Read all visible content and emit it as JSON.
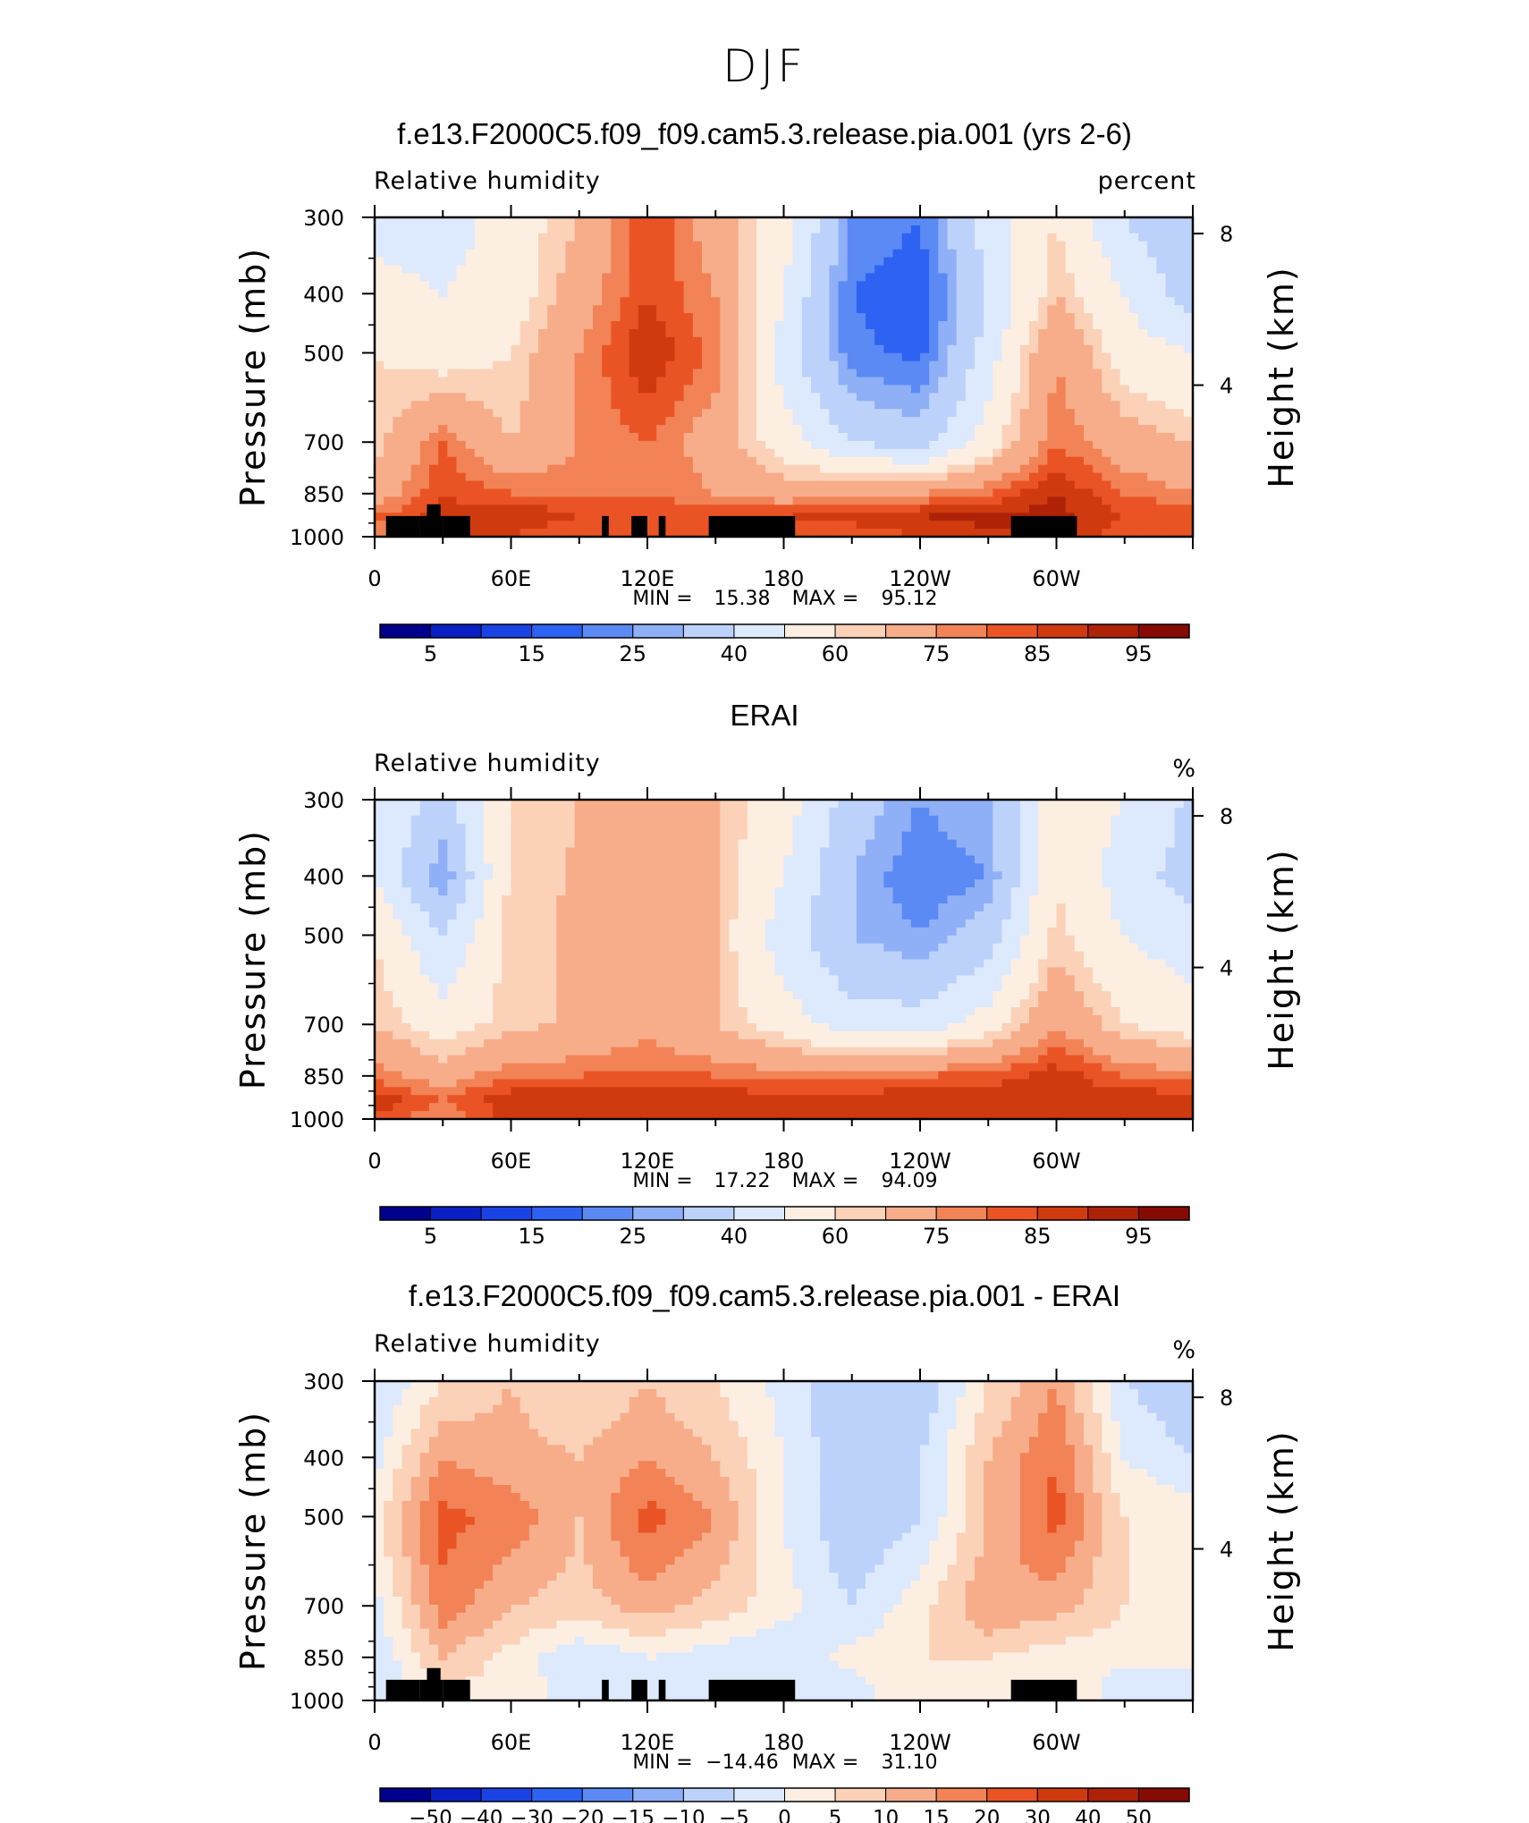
{
  "figure_title": "DJF",
  "colors": {
    "land_mask": "#000000",
    "scale": [
      "#00008c",
      "#0a20c4",
      "#1a43e6",
      "#2d62f2",
      "#5b8af5",
      "#8fb0f6",
      "#bdd2fa",
      "#dde9fc",
      "#fdeee2",
      "#fbd1b8",
      "#f7ad8a",
      "#f28356",
      "#ea5425",
      "#cf3a0f",
      "#ae2208",
      "#860b04"
    ]
  },
  "panels": [
    {
      "title": "f.e13.F2000C5.f09_f09.cam5.3.release.pia.001 (yrs 2-6)",
      "left_label": "Relative humidity",
      "right_label": "percent",
      "stats": {
        "min_label": "MIN =",
        "min": "15.38",
        "max_label": "MAX =",
        "max": "95.12"
      },
      "colorbar_labels": [
        "5",
        "15",
        "25",
        "40",
        "60",
        "75",
        "85",
        "95"
      ]
    },
    {
      "title": "ERAI",
      "left_label": "Relative humidity",
      "right_label": "%",
      "stats": {
        "min_label": "MIN =",
        "min": "17.22",
        "max_label": "MAX =",
        "max": "94.09"
      },
      "colorbar_labels": [
        "5",
        "15",
        "25",
        "40",
        "60",
        "75",
        "85",
        "95"
      ]
    },
    {
      "title": "f.e13.F2000C5.f09_f09.cam5.3.release.pia.001 - ERAI",
      "left_label": "Relative humidity",
      "right_label": "%",
      "stats": {
        "min_label": "MIN =",
        "min": "−14.46",
        "max_label": "MAX =",
        "max": "31.10"
      },
      "colorbar_labels": [
        "−50",
        "−40",
        "−30",
        "−20",
        "−15",
        "−10",
        "−5",
        "0",
        "5",
        "10",
        "15",
        "20",
        "30",
        "40",
        "50"
      ]
    }
  ],
  "chart_data": [
    {
      "type": "heatmap",
      "title": "f.e13.F2000C5.f09_f09.cam5.3.release.pia.001 (yrs 2-6)",
      "field": "Relative humidity",
      "units": "percent",
      "x_ticks": [
        "0",
        "60E",
        "120E",
        "180",
        "120W",
        "60W"
      ],
      "x_range": [
        0,
        360
      ],
      "y_ticks_pressure": [
        "300",
        "400",
        "500",
        "700",
        "850",
        "1000"
      ],
      "y_ticks_height": [
        "8",
        "4"
      ],
      "ylabel": "Pressure (mb)",
      "ylabel_right": "Height (km)",
      "ylim": [
        1000,
        300
      ],
      "grid": {
        "lon": [
          0,
          30,
          60,
          90,
          120,
          150,
          180,
          210,
          240,
          270,
          300,
          330,
          360
        ],
        "p": [
          300,
          400,
          500,
          700,
          850,
          925,
          1000
        ],
        "values": [
          [
            45,
            45,
            55,
            65,
            85,
            70,
            55,
            25,
            20,
            45,
            60,
            40,
            30
          ],
          [
            55,
            50,
            55,
            70,
            85,
            75,
            50,
            20,
            15,
            40,
            65,
            50,
            35
          ],
          [
            60,
            55,
            60,
            75,
            90,
            78,
            45,
            22,
            18,
            45,
            75,
            55,
            50
          ],
          [
            62,
            80,
            65,
            75,
            80,
            70,
            55,
            40,
            35,
            55,
            80,
            70,
            65
          ],
          [
            70,
            85,
            80,
            80,
            80,
            75,
            70,
            75,
            75,
            80,
            90,
            80,
            75
          ],
          [
            80,
            87,
            90,
            85,
            85,
            85,
            85,
            87,
            90,
            92,
            92,
            85,
            85
          ],
          [
            75,
            85,
            85,
            80,
            80,
            80,
            80,
            82,
            85,
            88,
            88,
            82,
            80
          ]
        ]
      },
      "min": 15.38,
      "max": 95.12,
      "color_levels": [
        5,
        10,
        15,
        20,
        25,
        30,
        40,
        50,
        60,
        65,
        75,
        80,
        85,
        90,
        95
      ]
    },
    {
      "type": "heatmap",
      "title": "ERAI",
      "field": "Relative humidity",
      "units": "%",
      "x_ticks": [
        "0",
        "60E",
        "120E",
        "180",
        "120W",
        "60W"
      ],
      "x_range": [
        0,
        360
      ],
      "y_ticks_pressure": [
        "300",
        "400",
        "500",
        "700",
        "850",
        "1000"
      ],
      "y_ticks_height": [
        "8",
        "4"
      ],
      "ylabel": "Pressure (mb)",
      "ylabel_right": "Height (km)",
      "ylim": [
        1000,
        300
      ],
      "grid": {
        "lon": [
          0,
          30,
          60,
          90,
          120,
          150,
          180,
          210,
          240,
          270,
          300,
          330,
          360
        ],
        "p": [
          300,
          400,
          500,
          700,
          850,
          925,
          1000
        ],
        "values": [
          [
            50,
            35,
            60,
            65,
            70,
            65,
            55,
            35,
            25,
            30,
            55,
            50,
            38
          ],
          [
            50,
            25,
            62,
            66,
            70,
            65,
            50,
            30,
            20,
            25,
            60,
            45,
            35
          ],
          [
            60,
            40,
            63,
            66,
            68,
            65,
            45,
            30,
            25,
            35,
            62,
            50,
            45
          ],
          [
            65,
            55,
            63,
            66,
            72,
            65,
            55,
            45,
            45,
            55,
            75,
            60,
            55
          ],
          [
            78,
            70,
            80,
            80,
            82,
            80,
            78,
            78,
            80,
            82,
            88,
            80,
            78
          ],
          [
            88,
            80,
            88,
            88,
            88,
            88,
            88,
            88,
            88,
            88,
            90,
            88,
            88
          ],
          [
            85,
            75,
            88,
            88,
            88,
            88,
            88,
            88,
            88,
            88,
            88,
            88,
            88
          ]
        ]
      },
      "min": 17.22,
      "max": 94.09,
      "color_levels": [
        5,
        10,
        15,
        20,
        25,
        30,
        40,
        50,
        60,
        65,
        75,
        80,
        85,
        90,
        95
      ]
    },
    {
      "type": "heatmap",
      "title": "f.e13.F2000C5.f09_f09.cam5.3.release.pia.001 - ERAI",
      "field": "Relative humidity",
      "units": "%",
      "x_ticks": [
        "0",
        "60E",
        "120E",
        "180",
        "120W",
        "60W"
      ],
      "x_range": [
        0,
        360
      ],
      "y_ticks_pressure": [
        "300",
        "400",
        "500",
        "700",
        "850",
        "1000"
      ],
      "y_ticks_height": [
        "8",
        "4"
      ],
      "ylabel": "Pressure (mb)",
      "ylabel_right": "Height (km)",
      "ylim": [
        1000,
        300
      ],
      "grid": {
        "lon": [
          0,
          30,
          60,
          90,
          120,
          150,
          180,
          210,
          240,
          270,
          300,
          330,
          360
        ],
        "p": [
          300,
          400,
          500,
          700,
          850,
          925,
          1000
        ],
        "values": [
          [
            -5,
            5,
            10,
            5,
            10,
            5,
            -2,
            -10,
            -10,
            5,
            15,
            -5,
            -10
          ],
          [
            -2,
            15,
            12,
            10,
            15,
            10,
            0,
            -10,
            -5,
            10,
            20,
            0,
            -5
          ],
          [
            3,
            22,
            18,
            10,
            22,
            15,
            0,
            -10,
            -5,
            10,
            22,
            5,
            3
          ],
          [
            -2,
            18,
            10,
            8,
            12,
            8,
            2,
            -5,
            3,
            15,
            12,
            5,
            3
          ],
          [
            -5,
            10,
            3,
            -5,
            0,
            -3,
            -5,
            2,
            5,
            5,
            2,
            2,
            3
          ],
          [
            -3,
            6,
            3,
            -3,
            -3,
            -3,
            -3,
            -1,
            3,
            3,
            3,
            -2,
            -2
          ],
          [
            -5,
            5,
            3,
            -2,
            -2,
            -2,
            -2,
            -2,
            3,
            3,
            3,
            -2,
            -2
          ]
        ]
      },
      "min": -14.46,
      "max": 31.1,
      "color_levels": [
        -50,
        -40,
        -30,
        -20,
        -15,
        -10,
        -5,
        0,
        5,
        10,
        15,
        20,
        30,
        40,
        50
      ]
    }
  ]
}
